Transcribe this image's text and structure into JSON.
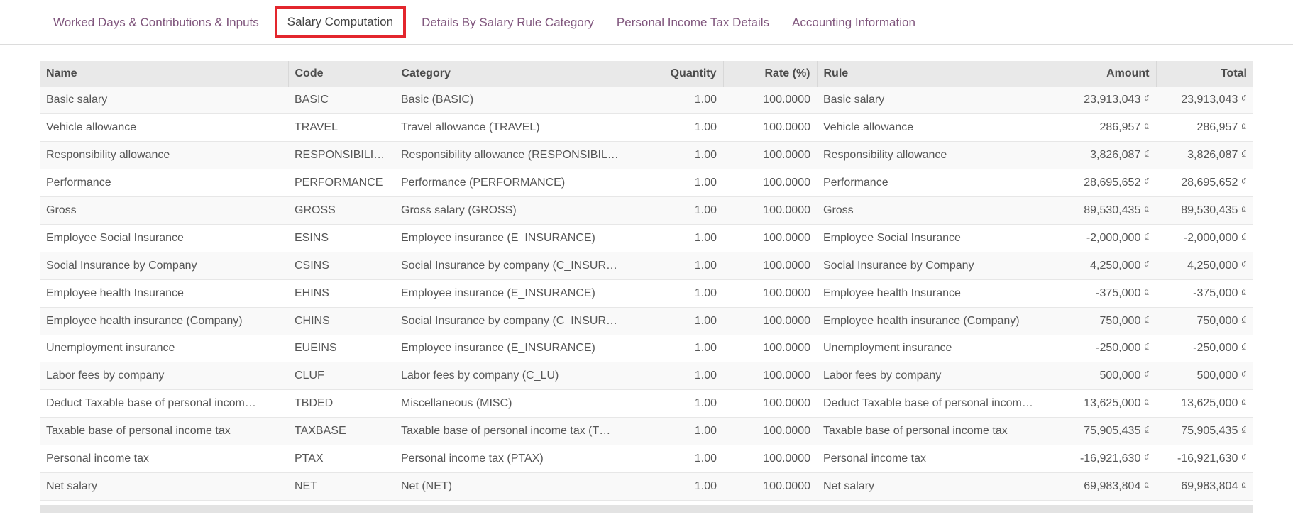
{
  "tabs": [
    {
      "label": "Worked Days & Contributions & Inputs",
      "active": false
    },
    {
      "label": "Salary Computation",
      "active": true
    },
    {
      "label": "Details By Salary Rule Category",
      "active": false
    },
    {
      "label": "Personal Income Tax Details",
      "active": false
    },
    {
      "label": "Accounting Information",
      "active": false
    }
  ],
  "annotation": {
    "type": "highlight-box",
    "color": "#e3262d",
    "target": "Salary Computation"
  },
  "colors": {
    "tab_inactive": "#80567d",
    "tab_active": "#454545",
    "header_bg": "#e9e9e9",
    "body_text": "#565656",
    "stripe_bg": "#f9f9f9",
    "footer_bar_bg": "#e3e3e3"
  },
  "table": {
    "columns": [
      {
        "key": "name",
        "label": "Name",
        "align": "left"
      },
      {
        "key": "code",
        "label": "Code",
        "align": "left"
      },
      {
        "key": "category",
        "label": "Category",
        "align": "left"
      },
      {
        "key": "quantity",
        "label": "Quantity",
        "align": "right"
      },
      {
        "key": "rate",
        "label": "Rate (%)",
        "align": "right"
      },
      {
        "key": "rule",
        "label": "Rule",
        "align": "left"
      },
      {
        "key": "amount",
        "label": "Amount",
        "align": "right"
      },
      {
        "key": "total",
        "label": "Total",
        "align": "right"
      }
    ],
    "rows": [
      [
        "Basic salary",
        "BASIC",
        "Basic (BASIC)",
        "1.00",
        "100.0000",
        "Basic salary",
        "23,913,043 ₫",
        "23,913,043 ₫"
      ],
      [
        "Vehicle allowance",
        "TRAVEL",
        "Travel allowance (TRAVEL)",
        "1.00",
        "100.0000",
        "Vehicle allowance",
        "286,957 ₫",
        "286,957 ₫"
      ],
      [
        "Responsibility allowance",
        "RESPONSIBILI…",
        "Responsibility allowance (RESPONSIBIL…",
        "1.00",
        "100.0000",
        "Responsibility allowance",
        "3,826,087 ₫",
        "3,826,087 ₫"
      ],
      [
        "Performance",
        "PERFORMANCE",
        "Performance (PERFORMANCE)",
        "1.00",
        "100.0000",
        "Performance",
        "28,695,652 ₫",
        "28,695,652 ₫"
      ],
      [
        "Gross",
        "GROSS",
        "Gross salary (GROSS)",
        "1.00",
        "100.0000",
        "Gross",
        "89,530,435 ₫",
        "89,530,435 ₫"
      ],
      [
        "Employee Social Insurance",
        "ESINS",
        "Employee insurance (E_INSURANCE)",
        "1.00",
        "100.0000",
        "Employee Social Insurance",
        "-2,000,000 ₫",
        "-2,000,000 ₫"
      ],
      [
        "Social Insurance by Company",
        "CSINS",
        "Social Insurance by company (C_INSUR…",
        "1.00",
        "100.0000",
        "Social Insurance by Company",
        "4,250,000 ₫",
        "4,250,000 ₫"
      ],
      [
        "Employee health Insurance",
        "EHINS",
        "Employee insurance (E_INSURANCE)",
        "1.00",
        "100.0000",
        "Employee health Insurance",
        "-375,000 ₫",
        "-375,000 ₫"
      ],
      [
        "Employee health insurance (Company)",
        "CHINS",
        "Social Insurance by company (C_INSUR…",
        "1.00",
        "100.0000",
        "Employee health insurance (Company)",
        "750,000 ₫",
        "750,000 ₫"
      ],
      [
        "Unemployment insurance",
        "EUEINS",
        "Employee insurance (E_INSURANCE)",
        "1.00",
        "100.0000",
        "Unemployment insurance",
        "-250,000 ₫",
        "-250,000 ₫"
      ],
      [
        "Labor fees by company",
        "CLUF",
        "Labor fees by company (C_LU)",
        "1.00",
        "100.0000",
        "Labor fees by company",
        "500,000 ₫",
        "500,000 ₫"
      ],
      [
        "Deduct Taxable base of personal incom…",
        "TBDED",
        "Miscellaneous (MISC)",
        "1.00",
        "100.0000",
        "Deduct Taxable base of personal incom…",
        "13,625,000 ₫",
        "13,625,000 ₫"
      ],
      [
        "Taxable base of personal income tax",
        "TAXBASE",
        "Taxable base of personal income tax (T…",
        "1.00",
        "100.0000",
        "Taxable base of personal income tax",
        "75,905,435 ₫",
        "75,905,435 ₫"
      ],
      [
        "Personal income tax",
        "PTAX",
        "Personal income tax (PTAX)",
        "1.00",
        "100.0000",
        "Personal income tax",
        "-16,921,630 ₫",
        "-16,921,630 ₫"
      ],
      [
        "Net salary",
        "NET",
        "Net (NET)",
        "1.00",
        "100.0000",
        "Net salary",
        "69,983,804 ₫",
        "69,983,804 ₫"
      ]
    ]
  }
}
